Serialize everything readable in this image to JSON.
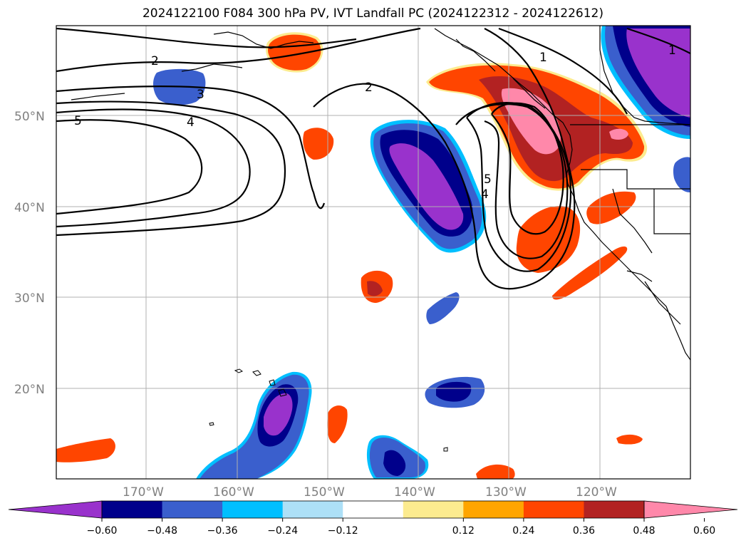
{
  "title": "2024122100 F084 300 hPa PV, IVT Landfall PC (2024122312 - 2024122612)",
  "map": {
    "lon_range": [
      180,
      110
    ],
    "lat_range": [
      10,
      60
    ],
    "lat_labels": [
      "50°N",
      "40°N",
      "30°N",
      "20°N"
    ],
    "lon_labels": [
      "170°W",
      "160°W",
      "150°W",
      "140°W",
      "130°W",
      "120°W"
    ],
    "gridlines": true,
    "coastlines": true,
    "state_borders": true
  },
  "pv_contour_labels": [
    "2",
    "2",
    "1",
    "1",
    "3",
    "4",
    "5",
    "5",
    "4"
  ],
  "colorbar": {
    "orientation": "horizontal",
    "extend": "both",
    "ticks": [
      "−0.60",
      "−0.48",
      "−0.36",
      "−0.24",
      "−0.12",
      "0.12",
      "0.24",
      "0.36",
      "0.48",
      "0.60"
    ],
    "colors": [
      "#9932CC",
      "#00008B",
      "#3A5FCD",
      "#00BFFF",
      "#ADE0F7",
      "#FFFFFF",
      "#FCEB8F",
      "#FFA500",
      "#FF4500",
      "#B22222",
      "#FF88AA"
    ]
  },
  "shading_colors": {
    "neg_strong": "#9932CC",
    "neg_dark": "#00008B",
    "neg_mid": "#3A5FCD",
    "neg_light": "#00BFFF",
    "pos_light": "#FCEB8F",
    "pos_mid": "#FF4500",
    "pos_strong": "#B22222",
    "pos_max": "#FF88AA"
  }
}
